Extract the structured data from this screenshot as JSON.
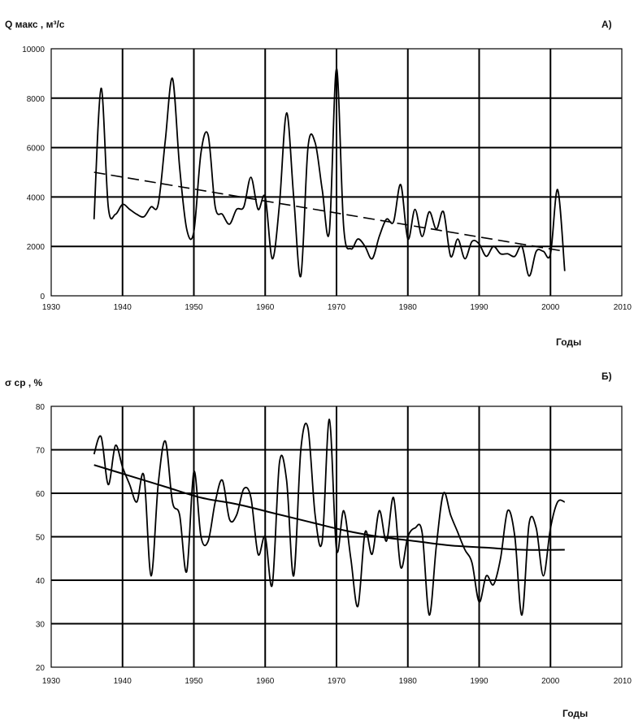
{
  "chart_data": [
    {
      "type": "line",
      "panel_label": "А)",
      "ylabel": "Q макс , м³/с",
      "xlabel": "Годы",
      "xlim": [
        1930,
        2010
      ],
      "ylim": [
        0,
        10000
      ],
      "x_ticks": [
        1930,
        1940,
        1950,
        1960,
        1970,
        1980,
        1990,
        2000,
        2010
      ],
      "y_ticks": [
        0,
        2000,
        4000,
        6000,
        8000,
        10000
      ],
      "grid": true,
      "series": [
        {
          "style": "solid",
          "x": [
            1936,
            1937,
            1938,
            1939,
            1940,
            1941,
            1942,
            1943,
            1944,
            1945,
            1946,
            1947,
            1948,
            1949,
            1950,
            1951,
            1952,
            1953,
            1954,
            1955,
            1956,
            1957,
            1958,
            1959,
            1960,
            1961,
            1962,
            1963,
            1964,
            1965,
            1966,
            1967,
            1968,
            1969,
            1970,
            1971,
            1972,
            1973,
            1974,
            1975,
            1976,
            1977,
            1978,
            1979,
            1980,
            1981,
            1982,
            1983,
            1984,
            1985,
            1986,
            1987,
            1988,
            1989,
            1990,
            1991,
            1992,
            1993,
            1994,
            1995,
            1996,
            1997,
            1998,
            1999,
            2000,
            2001,
            2002
          ],
          "values": [
            3100,
            8400,
            3600,
            3300,
            3700,
            3500,
            3300,
            3200,
            3600,
            3700,
            6300,
            8800,
            5200,
            2700,
            2600,
            5800,
            6500,
            3600,
            3300,
            2900,
            3500,
            3600,
            4800,
            3500,
            4000,
            1500,
            3700,
            7400,
            4000,
            800,
            6000,
            6200,
            4300,
            2600,
            9200,
            2800,
            1900,
            2300,
            2000,
            1500,
            2400,
            3100,
            3000,
            4500,
            2300,
            3500,
            2400,
            3400,
            2700,
            3400,
            1600,
            2300,
            1500,
            2200,
            2100,
            1600,
            2000,
            1700,
            1700,
            1600,
            2000,
            800,
            1800,
            1800,
            1700,
            4300,
            1000
          ]
        },
        {
          "style": "dashed",
          "x": [
            1936,
            2002
          ],
          "values": [
            5000,
            1800
          ]
        }
      ]
    },
    {
      "type": "line",
      "panel_label": "Б)",
      "ylabel": "σ ср , %",
      "xlabel": "Годы",
      "xlim": [
        1930,
        2010
      ],
      "ylim": [
        20,
        80
      ],
      "x_ticks": [
        1930,
        1940,
        1950,
        1960,
        1970,
        1980,
        1990,
        2000,
        2010
      ],
      "y_ticks": [
        20,
        30,
        40,
        50,
        60,
        70,
        80
      ],
      "grid": true,
      "series": [
        {
          "style": "solid",
          "x": [
            1936,
            1937,
            1938,
            1939,
            1940,
            1941,
            1942,
            1943,
            1944,
            1945,
            1946,
            1947,
            1948,
            1949,
            1950,
            1951,
            1952,
            1953,
            1954,
            1955,
            1956,
            1957,
            1958,
            1959,
            1960,
            1961,
            1962,
            1963,
            1964,
            1965,
            1966,
            1967,
            1968,
            1969,
            1970,
            1971,
            1972,
            1973,
            1974,
            1975,
            1976,
            1977,
            1978,
            1979,
            1980,
            1981,
            1982,
            1983,
            1984,
            1985,
            1986,
            1987,
            1988,
            1989,
            1990,
            1991,
            1992,
            1993,
            1994,
            1995,
            1996,
            1997,
            1998,
            1999,
            2000,
            2001,
            2002
          ],
          "values": [
            69,
            73,
            62,
            71,
            66,
            62,
            58,
            64,
            41,
            62,
            72,
            58,
            55,
            42,
            65,
            50,
            49,
            58,
            63,
            54,
            55,
            61,
            59,
            46,
            50,
            39,
            67,
            63,
            41,
            70,
            75,
            55,
            49,
            77,
            47,
            56,
            45,
            34,
            51,
            46,
            56,
            49,
            59,
            43,
            50,
            52,
            51,
            32,
            48,
            60,
            55,
            51,
            47,
            44,
            35,
            41,
            39,
            45,
            56,
            50,
            32,
            53,
            52,
            41,
            52,
            58,
            58
          ]
        },
        {
          "style": "solid",
          "trend": true,
          "x": [
            1936,
            1941,
            1946,
            1951,
            1956,
            1961,
            1966,
            1971,
            1976,
            1981,
            1986,
            1991,
            1996,
            2002
          ],
          "values": [
            66.5,
            64,
            61.5,
            59,
            57.5,
            55.5,
            53.5,
            51.5,
            50,
            49,
            48,
            47.5,
            47,
            47
          ]
        }
      ]
    }
  ]
}
